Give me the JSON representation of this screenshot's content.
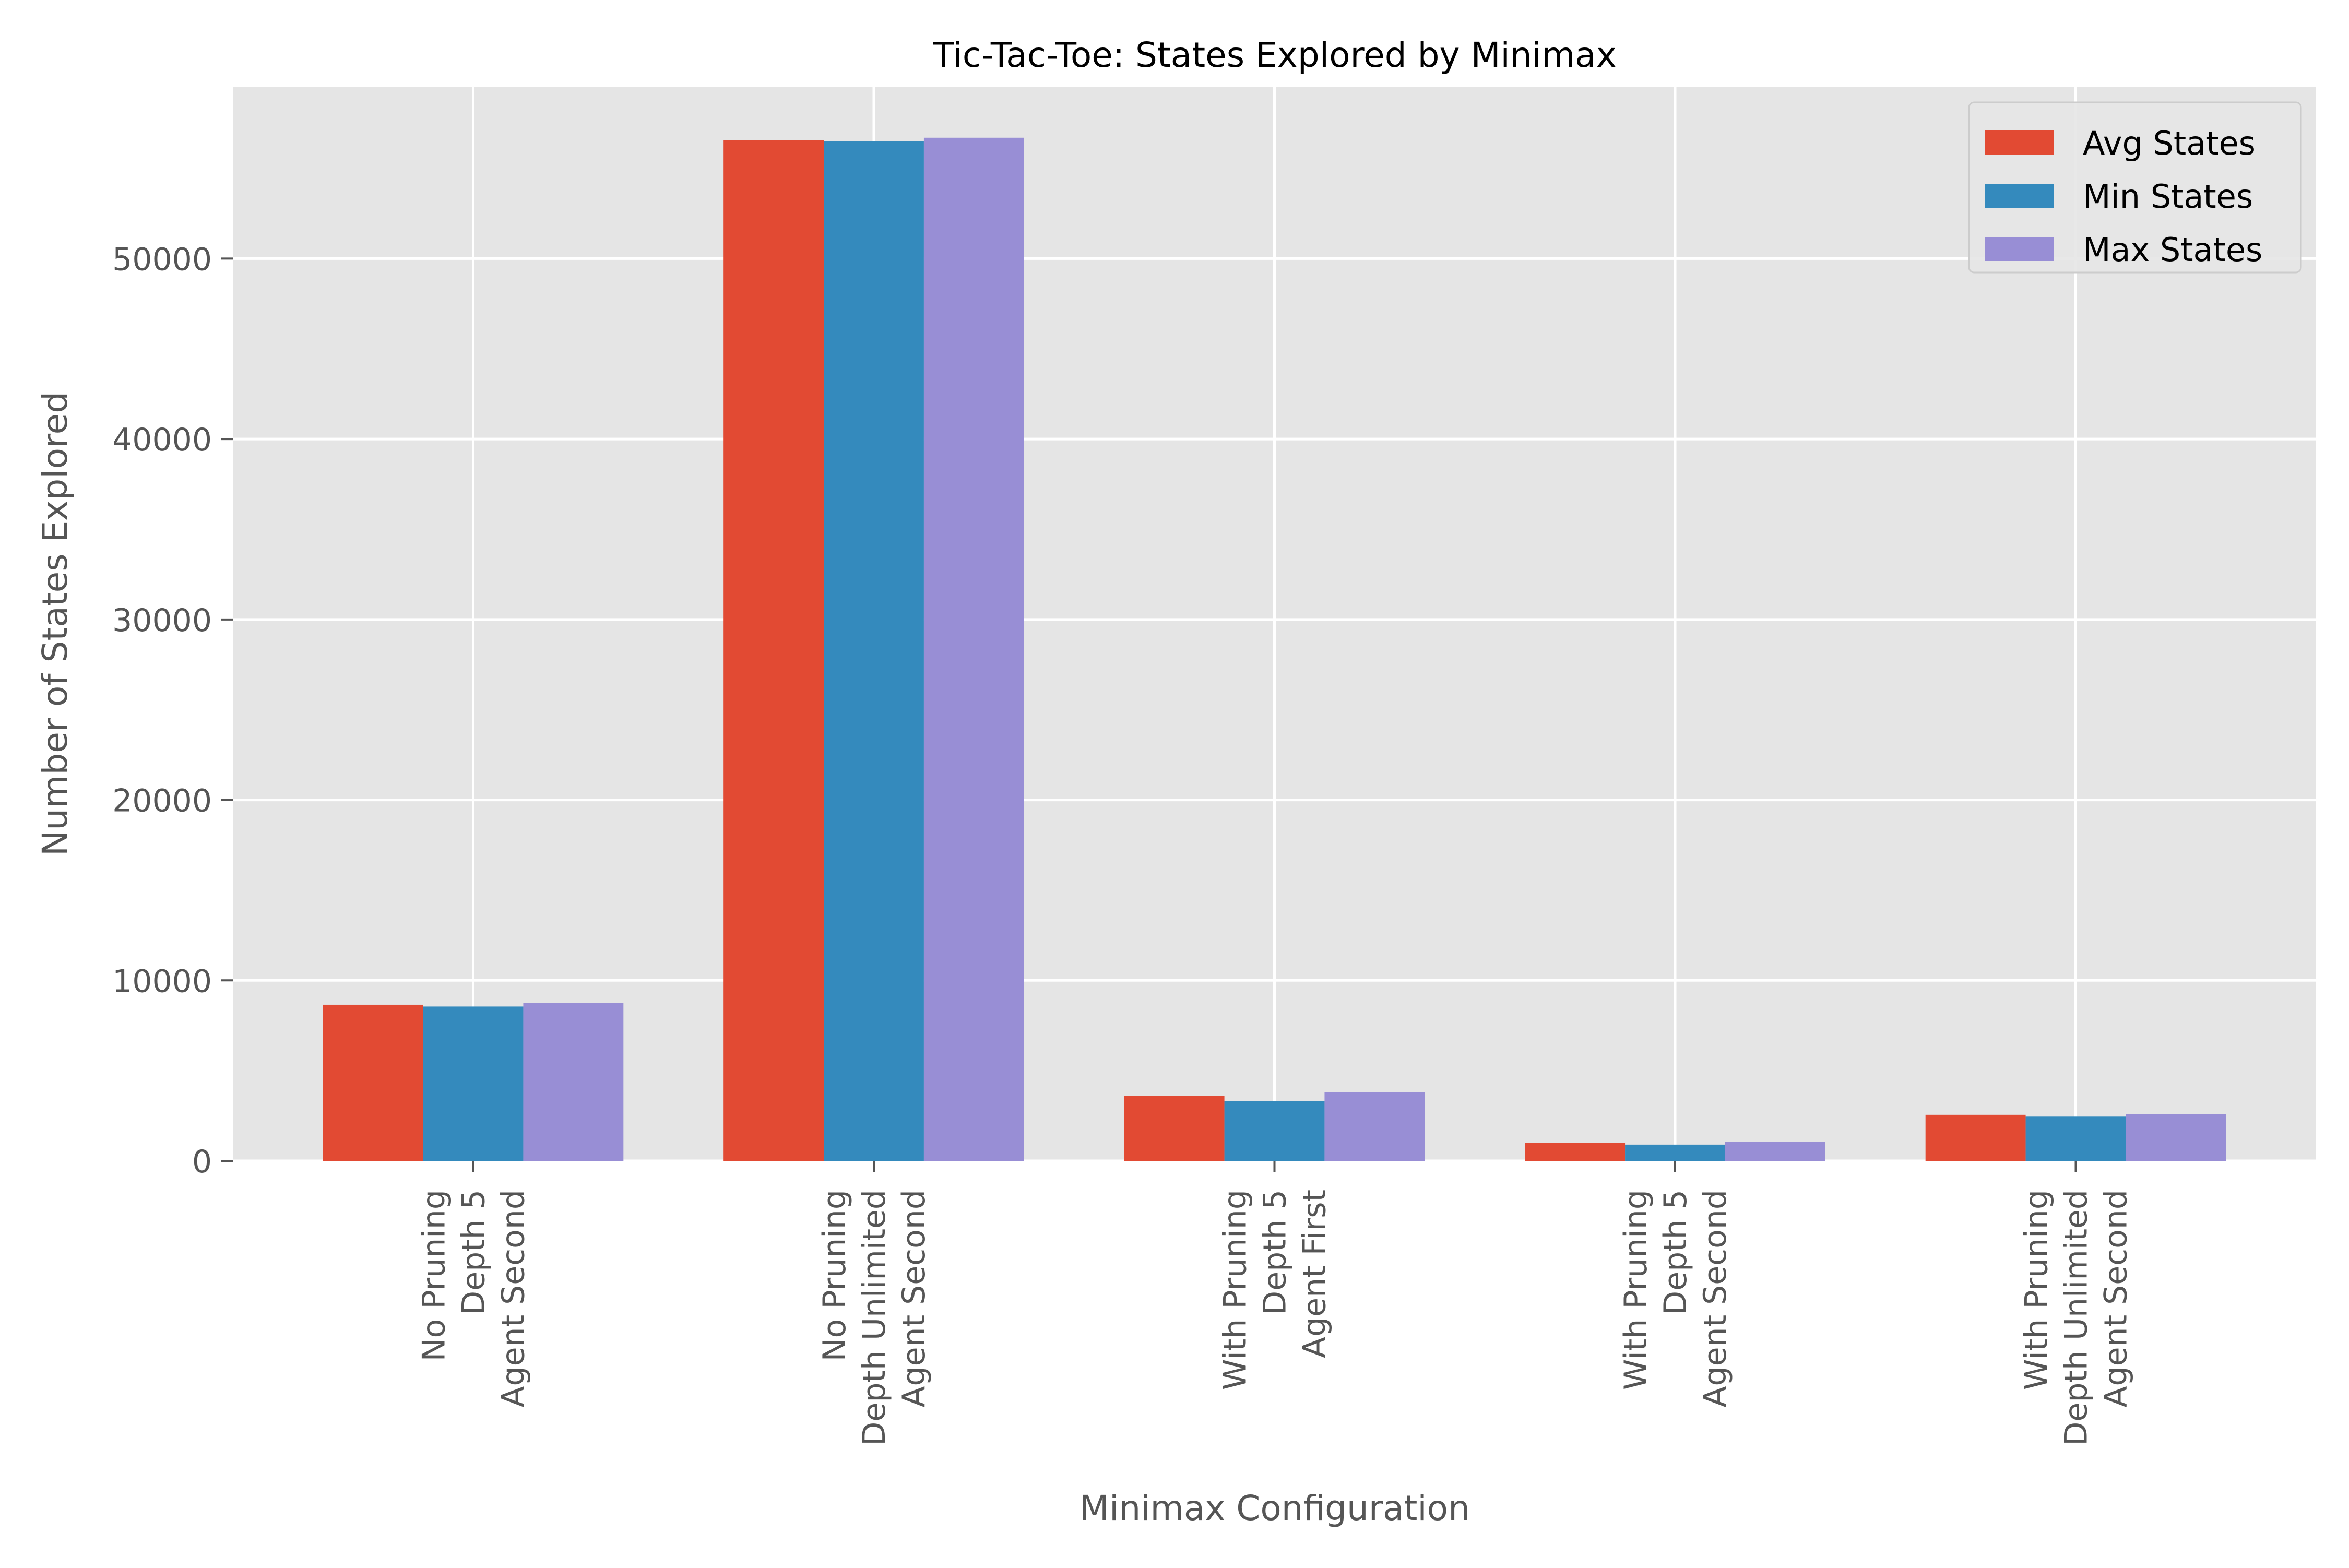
{
  "chart_data": {
    "type": "bar",
    "title": "Tic-Tac-Toe: States Explored by Minimax",
    "xlabel": "Minimax Configuration",
    "ylabel": "Number of States Explored",
    "categories": [
      [
        "No Pruning",
        "Depth 5",
        "Agent Second"
      ],
      [
        "No Pruning",
        "Depth Unlimited",
        "Agent Second"
      ],
      [
        "With Pruning",
        "Depth 5",
        "Agent First"
      ],
      [
        "With Pruning",
        "Depth 5",
        "Agent Second"
      ],
      [
        "With Pruning",
        "Depth Unlimited",
        "Agent Second"
      ]
    ],
    "series": [
      {
        "name": "Avg States",
        "color": "#E24A33",
        "values": [
          8650,
          56550,
          3600,
          1000,
          2550
        ]
      },
      {
        "name": "Min States",
        "color": "#348ABD",
        "values": [
          8550,
          56500,
          3300,
          900,
          2450
        ]
      },
      {
        "name": "Max States",
        "color": "#988ED5",
        "values": [
          8750,
          56700,
          3800,
          1050,
          2600
        ]
      }
    ],
    "ylim": [
      0,
      59500
    ],
    "yticks": [
      0,
      10000,
      20000,
      30000,
      40000,
      50000
    ],
    "ytick_labels": [
      "0",
      "10000",
      "20000",
      "30000",
      "40000",
      "50000"
    ],
    "grid": true,
    "legend_position": "top-right",
    "style": {
      "plot_background": "#E5E5E5",
      "grid_color": "#FFFFFF",
      "text_color": "#555555",
      "title_color": "#000000"
    }
  }
}
